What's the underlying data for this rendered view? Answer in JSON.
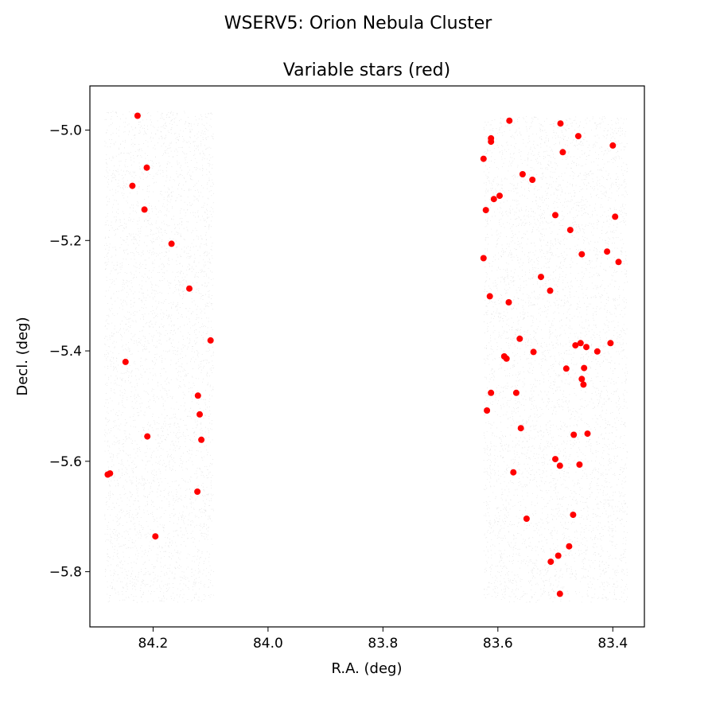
{
  "chart_data": {
    "type": "scatter",
    "suptitle": "WSERV5: Orion Nebula Cluster",
    "title": "Variable stars (red)",
    "xlabel": "R.A. (deg)",
    "ylabel": "Decl. (deg)",
    "xlim": [
      84.31,
      83.345
    ],
    "ylim": [
      -5.9,
      -4.92
    ],
    "x_inverted": true,
    "grid": false,
    "xticks": [
      84.2,
      84.0,
      83.8,
      83.6,
      83.4
    ],
    "xtick_labels": [
      "84.2",
      "84.0",
      "83.8",
      "83.6",
      "83.4"
    ],
    "yticks": [
      -5.0,
      -5.2,
      -5.4,
      -5.6,
      -5.8
    ],
    "ytick_labels": [
      "−5.0",
      "−5.2",
      "−5.4",
      "−5.6",
      "−5.8"
    ],
    "background_field": {
      "color": "#bbbbbb",
      "regions": [
        {
          "ra_range": [
            84.095,
            84.285
          ],
          "dec_range": [
            -5.855,
            -4.965
          ]
        },
        {
          "ra_range": [
            83.375,
            83.625
          ],
          "dec_range": [
            -5.855,
            -4.975
          ]
        }
      ]
    },
    "series": [
      {
        "color": "#ff0000",
        "points": [
          [
            84.227,
            -4.974
          ],
          [
            84.211,
            -5.068
          ],
          [
            84.236,
            -5.101
          ],
          [
            84.215,
            -5.144
          ],
          [
            84.168,
            -5.206
          ],
          [
            84.137,
            -5.287
          ],
          [
            84.1,
            -5.381
          ],
          [
            84.248,
            -5.42
          ],
          [
            84.122,
            -5.481
          ],
          [
            84.119,
            -5.515
          ],
          [
            84.21,
            -5.555
          ],
          [
            84.116,
            -5.561
          ],
          [
            84.275,
            -5.622
          ],
          [
            84.279,
            -5.624
          ],
          [
            84.123,
            -5.655
          ],
          [
            84.196,
            -5.736
          ],
          [
            83.58,
            -4.983
          ],
          [
            83.491,
            -4.988
          ],
          [
            83.46,
            -5.011
          ],
          [
            83.612,
            -5.015
          ],
          [
            83.612,
            -5.021
          ],
          [
            83.4,
            -5.028
          ],
          [
            83.487,
            -5.04
          ],
          [
            83.625,
            -5.052
          ],
          [
            83.557,
            -5.08
          ],
          [
            83.54,
            -5.09
          ],
          [
            83.597,
            -5.119
          ],
          [
            83.607,
            -5.125
          ],
          [
            83.621,
            -5.145
          ],
          [
            83.5,
            -5.154
          ],
          [
            83.396,
            -5.157
          ],
          [
            83.474,
            -5.181
          ],
          [
            83.41,
            -5.22
          ],
          [
            83.454,
            -5.225
          ],
          [
            83.625,
            -5.232
          ],
          [
            83.39,
            -5.239
          ],
          [
            83.525,
            -5.266
          ],
          [
            83.509,
            -5.291
          ],
          [
            83.614,
            -5.301
          ],
          [
            83.581,
            -5.312
          ],
          [
            83.562,
            -5.378
          ],
          [
            83.404,
            -5.386
          ],
          [
            83.456,
            -5.386
          ],
          [
            83.465,
            -5.39
          ],
          [
            83.446,
            -5.393
          ],
          [
            83.427,
            -5.401
          ],
          [
            83.538,
            -5.402
          ],
          [
            83.589,
            -5.41
          ],
          [
            83.585,
            -5.414
          ],
          [
            83.481,
            -5.432
          ],
          [
            83.45,
            -5.431
          ],
          [
            83.454,
            -5.451
          ],
          [
            83.451,
            -5.461
          ],
          [
            83.612,
            -5.476
          ],
          [
            83.568,
            -5.476
          ],
          [
            83.619,
            -5.508
          ],
          [
            83.56,
            -5.54
          ],
          [
            83.468,
            -5.552
          ],
          [
            83.444,
            -5.55
          ],
          [
            83.5,
            -5.596
          ],
          [
            83.458,
            -5.606
          ],
          [
            83.492,
            -5.608
          ],
          [
            83.573,
            -5.62
          ],
          [
            83.469,
            -5.697
          ],
          [
            83.55,
            -5.704
          ],
          [
            83.476,
            -5.754
          ],
          [
            83.495,
            -5.771
          ],
          [
            83.508,
            -5.782
          ],
          [
            83.492,
            -5.84
          ]
        ]
      }
    ]
  }
}
